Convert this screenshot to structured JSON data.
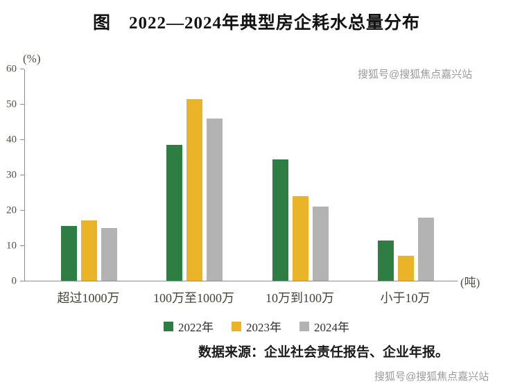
{
  "title": "图　2022—2024年典型房企耗水总量分布",
  "source": "数据来源：企业社会责任报告、企业年报。",
  "watermarks": {
    "top": "搜狐号@搜狐焦点嘉兴站",
    "bottom": "搜狐号@搜狐焦点嘉兴站"
  },
  "chart_data": {
    "type": "bar",
    "title": "图　2022—2024年典型房企耗水总量分布",
    "categories": [
      "超过1000万",
      "100万至1000万",
      "10万到100万",
      "小于10万"
    ],
    "series": [
      {
        "name": "2022年",
        "color": "#2e7d43",
        "values": [
          15.5,
          38.5,
          34.5,
          11.5
        ]
      },
      {
        "name": "2023年",
        "color": "#eab429",
        "values": [
          17.2,
          51.5,
          24.1,
          7.0
        ]
      },
      {
        "name": "2024年",
        "color": "#b3b3b3",
        "values": [
          15.0,
          46.0,
          21.0,
          18.0
        ]
      }
    ],
    "ylabel": "(%)",
    "xunit": "(吨)",
    "xlabel": "",
    "ylim": [
      0,
      60
    ],
    "yticks": [
      0,
      10,
      20,
      30,
      40,
      50,
      60
    ],
    "grid": false,
    "legend_position": "bottom"
  }
}
